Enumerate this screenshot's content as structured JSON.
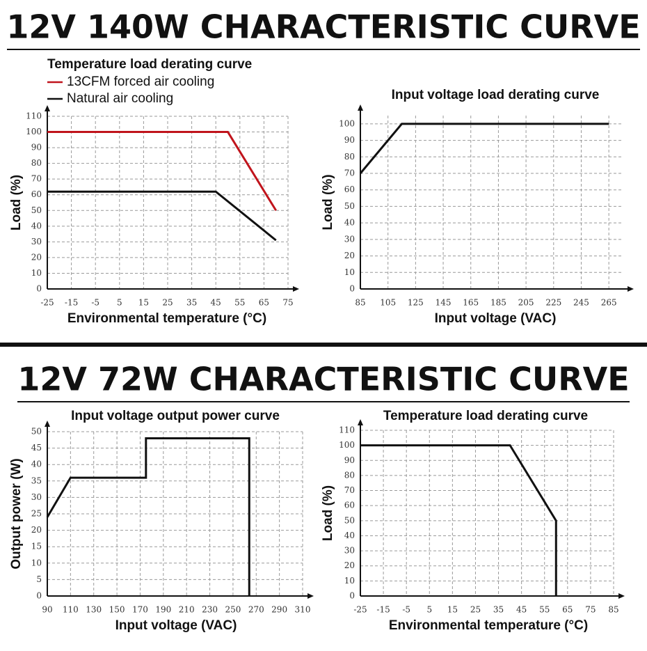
{
  "headings": [
    "12V 140W CHARACTERISTIC CURVE",
    "12V 72W CHARACTERISTIC CURVE"
  ],
  "chart_data": [
    {
      "type": "line",
      "title": "Temperature load derating curve",
      "xlabel": "Environmental temperature (°C)",
      "ylabel": "Load (%)",
      "xlim": [
        -25,
        75
      ],
      "ylim": [
        0,
        110
      ],
      "xticks": [
        -25,
        -15,
        -5,
        5,
        15,
        25,
        35,
        45,
        55,
        65,
        75
      ],
      "yticks": [
        0,
        10,
        20,
        30,
        40,
        50,
        60,
        70,
        80,
        90,
        100,
        110
      ],
      "grid": true,
      "legend": "top-left",
      "series": [
        {
          "name": "13CFM forced air cooling",
          "color": "#c0141c",
          "x": [
            -25,
            50,
            70
          ],
          "values": [
            100,
            100,
            50
          ]
        },
        {
          "name": "Natural air cooling",
          "color": "#111111",
          "x": [
            -25,
            45,
            70
          ],
          "values": [
            62,
            62,
            31
          ]
        }
      ]
    },
    {
      "type": "line",
      "title": "Input voltage load derating curve",
      "xlabel": "Input voltage (VAC)",
      "ylabel": "Load (%)",
      "xlim": [
        85,
        275
      ],
      "ylim": [
        0,
        105
      ],
      "xticks": [
        85,
        105,
        125,
        145,
        165,
        185,
        205,
        225,
        245,
        265
      ],
      "yticks": [
        0,
        10,
        20,
        30,
        40,
        50,
        60,
        70,
        80,
        90,
        100
      ],
      "grid": true,
      "series": [
        {
          "color": "#111111",
          "x": [
            85,
            115,
            265
          ],
          "values": [
            70,
            100,
            100
          ]
        }
      ]
    },
    {
      "type": "line",
      "title": "Input voltage output power curve",
      "xlabel": "Input voltage (VAC)",
      "ylabel": "Output power (W)",
      "xlim": [
        90,
        310
      ],
      "ylim": [
        0,
        50
      ],
      "xticks": [
        90,
        110,
        130,
        150,
        170,
        190,
        210,
        230,
        250,
        270,
        290,
        310
      ],
      "yticks": [
        0,
        5,
        10,
        15,
        20,
        25,
        30,
        35,
        40,
        45,
        50
      ],
      "grid": true,
      "series": [
        {
          "color": "#111111",
          "x": [
            90,
            110,
            175,
            175,
            264,
            264
          ],
          "values": [
            24,
            36,
            36,
            48,
            48,
            0
          ]
        }
      ]
    },
    {
      "type": "line",
      "title": "Temperature load derating curve",
      "xlabel": "Environmental temperature (°C)",
      "ylabel": "Load (%)",
      "xlim": [
        -25,
        85
      ],
      "ylim": [
        0,
        110
      ],
      "xticks": [
        -25,
        -15,
        -5,
        5,
        15,
        25,
        35,
        45,
        55,
        65,
        75,
        85
      ],
      "yticks": [
        0,
        10,
        20,
        30,
        40,
        50,
        60,
        70,
        80,
        90,
        100,
        110
      ],
      "grid": true,
      "series": [
        {
          "color": "#111111",
          "x": [
            -25,
            40,
            60,
            60
          ],
          "values": [
            100,
            100,
            50,
            0
          ]
        }
      ]
    }
  ]
}
